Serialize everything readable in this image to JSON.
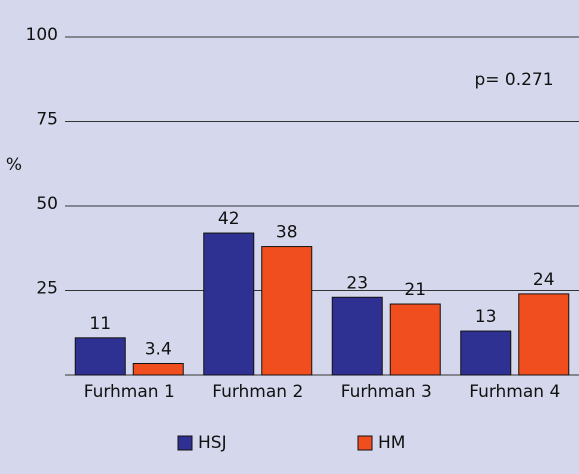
{
  "chart_data": {
    "type": "bar",
    "categories": [
      "Furhman 1",
      "Furhman 2",
      "Furhman 3",
      "Furhman 4"
    ],
    "series": [
      {
        "name": "HSJ",
        "color": "#2e3192",
        "values": [
          11,
          42,
          23,
          13
        ]
      },
      {
        "name": "HM",
        "color": "#f04e1e",
        "values": [
          3.4,
          38,
          21,
          24
        ]
      }
    ],
    "ylabel": "%",
    "annotation": "p= 0.271",
    "ylim": [
      0,
      100
    ],
    "yticks": [
      25,
      50,
      75,
      100
    ],
    "grid": true
  }
}
